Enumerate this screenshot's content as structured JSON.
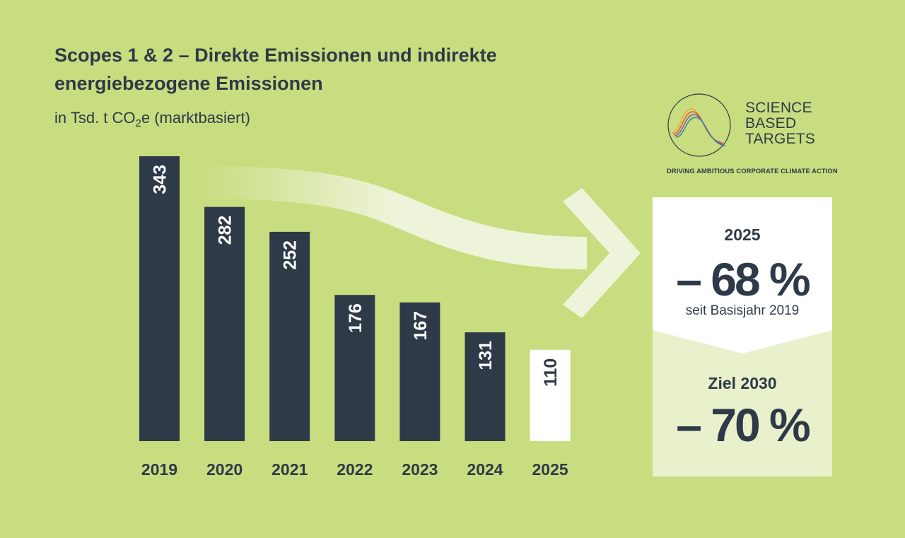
{
  "title": "Scopes 1 & 2 – Direkte Emissionen und indirekte energiebezogene Emissionen",
  "subtitle": {
    "prefix": "in Tsd. t CO",
    "sub": "2",
    "suffix": "e (marktbasiert)"
  },
  "chart_data": {
    "type": "bar",
    "categories": [
      "2019",
      "2020",
      "2021",
      "2022",
      "2023",
      "2024",
      "2025"
    ],
    "values": [
      343,
      282,
      252,
      176,
      167,
      131,
      110
    ],
    "ylim": [
      0,
      343
    ],
    "grid": false,
    "bar_color": "#2e3a48",
    "highlight_bar": {
      "category": "2025",
      "color": "#ffffff"
    },
    "label_color": "#ffffff",
    "highlight_label_color": "#2e3a48"
  },
  "logo": {
    "name_lines": [
      "SCIENCE",
      "BASED",
      "TARGETS"
    ],
    "tagline": "DRIVING AMBITIOUS CORPORATE CLIMATE ACTION"
  },
  "summary": {
    "year": "2025",
    "reduction": "– 68 %",
    "note": "seit Basisjahr 2019",
    "goal_label": "Ziel 2030",
    "goal_reduction": "– 70 %"
  },
  "colors": {
    "background": "#c8dd7f",
    "dark": "#2e3a48",
    "card_top": "#ffffff",
    "card_bottom": "#e9f1cc",
    "arrow": "#eef4d9"
  }
}
